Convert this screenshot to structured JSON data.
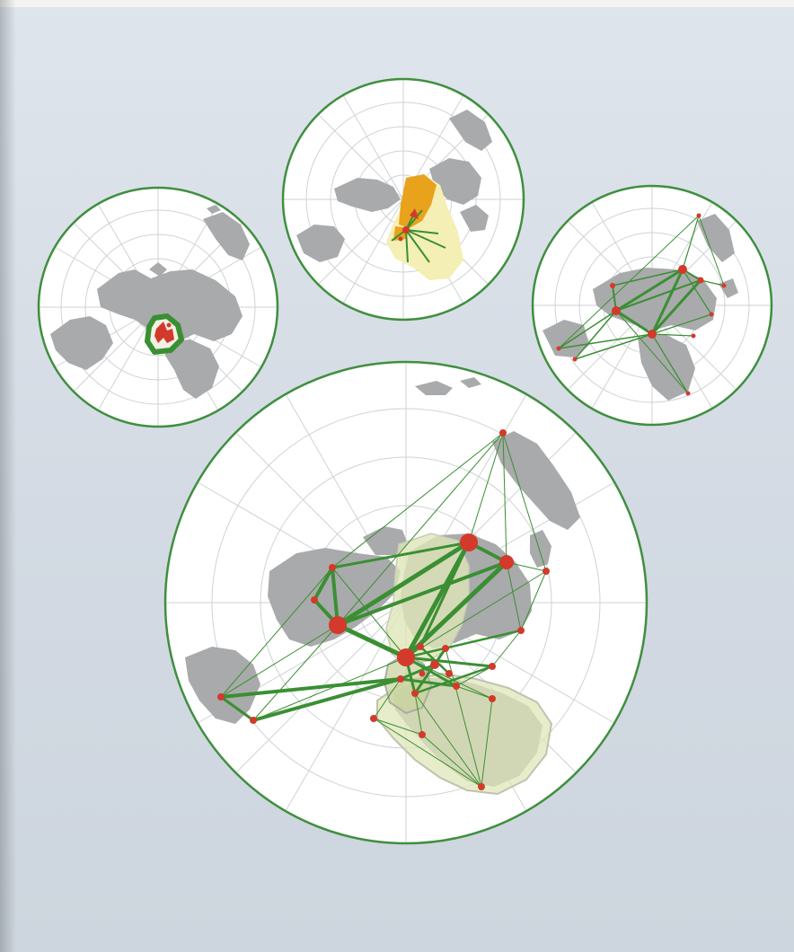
{
  "figure": {
    "description_text": "",
    "colors": {
      "background": "#d8dee6",
      "globe_fill": "#ffffff",
      "globe_border": "#3f8f3f",
      "graticule": "#c8ccd0",
      "land": "#a9aaab",
      "connection": "#3a8f33",
      "node": "#d33a2c",
      "region_orange": "#e9a21c",
      "region_pale_yellow": "#f4efb4",
      "region_pale_green": "#dfe6b8",
      "region_olive": "#c8d29a"
    },
    "globes": [
      {
        "id": "globe-small-left",
        "theme": "regional-network-europe"
      },
      {
        "id": "globe-small-top",
        "theme": "radiating-network-from-arabia"
      },
      {
        "id": "globe-small-right",
        "theme": "intercontinental-network"
      },
      {
        "id": "globe-large-bottom",
        "theme": "major-intercontinental-network"
      }
    ]
  }
}
